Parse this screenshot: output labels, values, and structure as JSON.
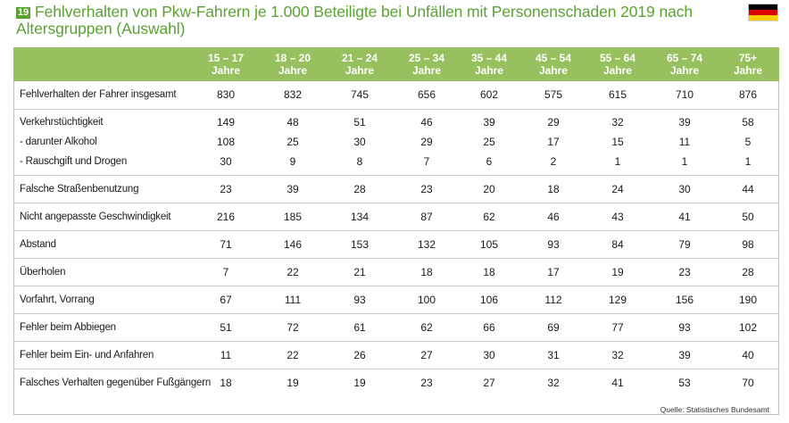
{
  "header": {
    "figure_number": "19",
    "title": "Fehlverhalten von Pkw-Fahrern je 1.000 Beteiligte bei Unfällen mit Personenschaden 2019 nach Altersgruppen (Auswahl)",
    "flag_colors": [
      "#000000",
      "#dd0000",
      "#ffcc00"
    ]
  },
  "source": "Quelle: Statistisches Bundesamt",
  "colors": {
    "accent": "#5aa332",
    "header_bg": "#97c15f"
  },
  "chart_data": {
    "type": "table",
    "columns": [
      {
        "range": "15 – 17",
        "unit": "Jahre"
      },
      {
        "range": "18 – 20",
        "unit": "Jahre"
      },
      {
        "range": "21 – 24",
        "unit": "Jahre"
      },
      {
        "range": "25 – 34",
        "unit": "Jahre"
      },
      {
        "range": "35 – 44",
        "unit": "Jahre"
      },
      {
        "range": "45 – 54",
        "unit": "Jahre"
      },
      {
        "range": "55 – 64",
        "unit": "Jahre"
      },
      {
        "range": "65 – 74",
        "unit": "Jahre"
      },
      {
        "range": "75+",
        "unit": "Jahre"
      }
    ],
    "rows": [
      {
        "label": "Fehlverhalten der Fahrer insgesamt",
        "values": [
          830,
          832,
          745,
          656,
          602,
          575,
          615,
          710,
          876
        ]
      },
      {
        "label": "Verkehrstüchtigkeit",
        "values": [
          149,
          48,
          51,
          46,
          39,
          29,
          32,
          39,
          58
        ]
      },
      {
        "label": "- darunter Alkohol",
        "values": [
          108,
          25,
          30,
          29,
          25,
          17,
          15,
          11,
          5
        ]
      },
      {
        "label": "- Rauschgift und Drogen",
        "values": [
          30,
          9,
          8,
          7,
          6,
          2,
          1,
          1,
          1
        ]
      },
      {
        "label": "Falsche Straßenbenutzung",
        "values": [
          23,
          39,
          28,
          23,
          20,
          18,
          24,
          30,
          44
        ]
      },
      {
        "label": "Nicht angepasste Geschwindigkeit",
        "values": [
          216,
          185,
          134,
          87,
          62,
          46,
          43,
          41,
          50
        ]
      },
      {
        "label": "Abstand",
        "values": [
          71,
          146,
          153,
          132,
          105,
          93,
          84,
          79,
          98
        ]
      },
      {
        "label": "Überholen",
        "values": [
          7,
          22,
          21,
          18,
          18,
          17,
          19,
          23,
          28
        ]
      },
      {
        "label": "Vorfahrt, Vorrang",
        "values": [
          67,
          111,
          93,
          100,
          106,
          112,
          129,
          156,
          190
        ]
      },
      {
        "label": "Fehler beim Abbiegen",
        "values": [
          51,
          72,
          61,
          62,
          66,
          69,
          77,
          93,
          102
        ]
      },
      {
        "label": "Fehler beim Ein- und Anfahren",
        "values": [
          11,
          22,
          26,
          27,
          30,
          31,
          32,
          39,
          40
        ]
      },
      {
        "label": "Falsches Verhalten gegenüber Fußgängern",
        "values": [
          18,
          19,
          19,
          23,
          27,
          32,
          41,
          53,
          70
        ]
      }
    ]
  }
}
